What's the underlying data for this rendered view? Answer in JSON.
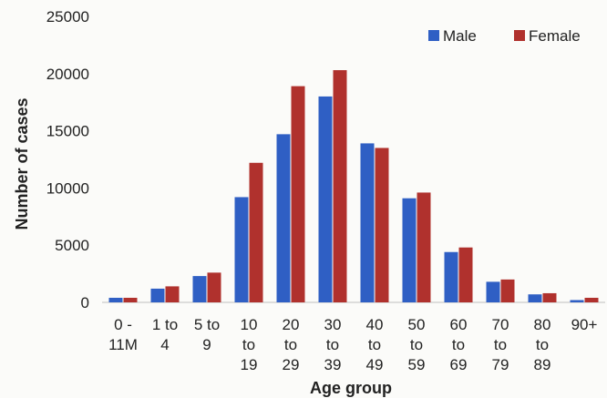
{
  "chart_data": {
    "type": "bar",
    "title": "",
    "xlabel": "Age group",
    "ylabel": "Number of cases",
    "ylim": [
      0,
      25000
    ],
    "yticks": [
      0,
      5000,
      10000,
      15000,
      20000,
      25000
    ],
    "grid": false,
    "legend_position": "top-right",
    "categories": [
      [
        "0 -",
        "11M"
      ],
      [
        "1 to",
        "4"
      ],
      [
        "5 to",
        "9"
      ],
      [
        "10",
        "to",
        "19"
      ],
      [
        "20",
        "to",
        "29"
      ],
      [
        "30",
        "to",
        "39"
      ],
      [
        "40",
        "to",
        "49"
      ],
      [
        "50",
        "to",
        "59"
      ],
      [
        "60",
        "to",
        "69"
      ],
      [
        "70",
        "to",
        "79"
      ],
      [
        "80",
        "to",
        "89"
      ],
      [
        "90+"
      ]
    ],
    "series": [
      {
        "name": "Male",
        "color": "#2f5fc4",
        "values": [
          400,
          1200,
          2300,
          9200,
          14700,
          18000,
          13900,
          9100,
          4400,
          1800,
          700,
          200
        ]
      },
      {
        "name": "Female",
        "color": "#b0312d",
        "values": [
          400,
          1400,
          2600,
          12200,
          18900,
          20300,
          13500,
          9600,
          4800,
          2000,
          800,
          400
        ]
      }
    ]
  }
}
